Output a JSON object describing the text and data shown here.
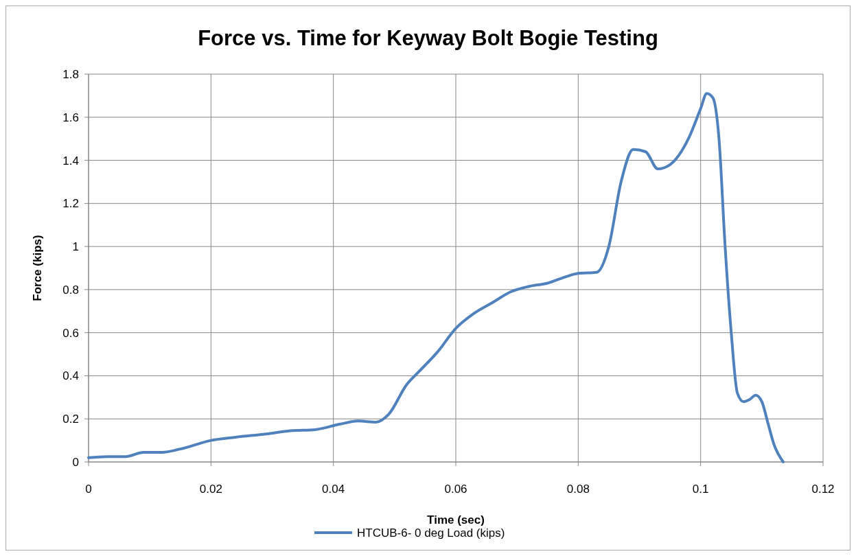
{
  "chart_data": {
    "type": "line",
    "title": "Force vs. Time for Keyway Bolt Bogie Testing",
    "xlabel": "Time (sec)",
    "ylabel": "Force (kips)",
    "x": [
      0,
      0.003,
      0.006,
      0.009,
      0.012,
      0.015,
      0.02,
      0.024,
      0.029,
      0.033,
      0.037,
      0.041,
      0.044,
      0.047,
      0.049,
      0.052,
      0.054,
      0.057,
      0.06,
      0.063,
      0.066,
      0.069,
      0.072,
      0.075,
      0.078,
      0.08,
      0.083,
      0.085,
      0.087,
      0.089,
      0.091,
      0.093,
      0.095,
      0.098,
      0.1,
      0.101,
      0.102,
      0.103,
      0.104,
      0.105,
      0.106,
      0.107,
      0.108,
      0.109,
      0.11,
      0.111,
      0.112,
      0.1135
    ],
    "series": [
      {
        "name": "HTCUB-6- 0 deg Load (kips)",
        "color": "#4f81bd",
        "values": [
          0.02,
          0.025,
          0.025,
          0.045,
          0.045,
          0.06,
          0.1,
          0.115,
          0.13,
          0.145,
          0.15,
          0.175,
          0.19,
          0.185,
          0.22,
          0.36,
          0.42,
          0.51,
          0.62,
          0.69,
          0.74,
          0.79,
          0.815,
          0.83,
          0.86,
          0.875,
          0.88,
          1.0,
          1.3,
          1.45,
          1.44,
          1.36,
          1.38,
          1.5,
          1.64,
          1.71,
          1.69,
          1.5,
          1.0,
          0.6,
          0.32,
          0.28,
          0.29,
          0.31,
          0.28,
          0.18,
          0.08,
          0
        ]
      }
    ],
    "xlim": [
      0,
      0.12
    ],
    "xticks": [
      0,
      0.02,
      0.04,
      0.06,
      0.08,
      0.1,
      0.12
    ],
    "ylim": [
      0,
      1.8
    ],
    "yticks": [
      0,
      0.2,
      0.4,
      0.6,
      0.8,
      1,
      1.2,
      1.4,
      1.6,
      1.8
    ],
    "grid": true,
    "legend": "bottom",
    "marker": "none",
    "line_style": "solid"
  }
}
